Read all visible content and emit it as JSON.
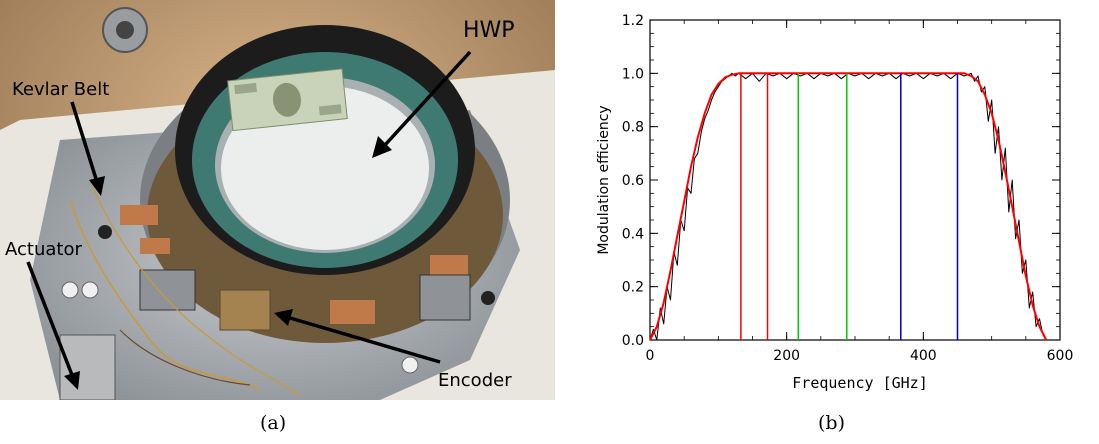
{
  "panel_a": {
    "caption": "(a)",
    "labels": {
      "hwp": "HWP",
      "kevlar_belt": "Kevlar Belt",
      "actuator": "Actuator",
      "encoder": "Encoder"
    }
  },
  "panel_b": {
    "caption": "(b)"
  },
  "chart_data": {
    "type": "line",
    "title": "",
    "xlabel": "Frequency [GHz]",
    "ylabel": "Modulation efficiency",
    "xlim": [
      0,
      600
    ],
    "ylim": [
      0.0,
      1.2
    ],
    "xticks": [
      0,
      200,
      400,
      600
    ],
    "xtick_labels": [
      "0",
      "200",
      "400",
      "600"
    ],
    "yticks": [
      0.0,
      0.2,
      0.4,
      0.6,
      0.8,
      1.0,
      1.2
    ],
    "ytick_labels": [
      "0.0",
      "0.2",
      "0.4",
      "0.6",
      "0.8",
      "1.0",
      "1.2"
    ],
    "grid": false,
    "series": [
      {
        "color": "#000000",
        "x": [
          0,
          5,
          10,
          15,
          20,
          25,
          30,
          35,
          40,
          45,
          50,
          55,
          60,
          65,
          70,
          75,
          80,
          85,
          90,
          95,
          100,
          105,
          110,
          115,
          120,
          125,
          130,
          140,
          150,
          160,
          170,
          180,
          190,
          200,
          210,
          220,
          230,
          240,
          250,
          260,
          270,
          280,
          290,
          300,
          310,
          320,
          330,
          340,
          350,
          360,
          370,
          380,
          390,
          400,
          410,
          420,
          430,
          440,
          450,
          460,
          470,
          475,
          480,
          485,
          490,
          495,
          500,
          505,
          510,
          515,
          520,
          525,
          530,
          535,
          540,
          545,
          550,
          555,
          560,
          565,
          570,
          575,
          580
        ],
        "values": [
          0.0,
          0.04,
          0.0,
          0.12,
          0.06,
          0.2,
          0.15,
          0.33,
          0.28,
          0.45,
          0.41,
          0.57,
          0.55,
          0.68,
          0.7,
          0.78,
          0.83,
          0.86,
          0.9,
          0.93,
          0.95,
          0.97,
          0.98,
          0.99,
          1.0,
          0.99,
          1.0,
          0.98,
          1.0,
          0.97,
          1.0,
          0.99,
          1.0,
          0.98,
          1.0,
          0.99,
          1.0,
          0.98,
          1.0,
          0.99,
          1.0,
          0.98,
          1.0,
          0.99,
          1.0,
          0.98,
          1.0,
          0.99,
          1.0,
          0.98,
          1.0,
          0.99,
          1.0,
          0.98,
          1.0,
          0.99,
          1.0,
          0.98,
          1.0,
          0.99,
          1.0,
          0.97,
          0.99,
          0.93,
          0.95,
          0.82,
          0.9,
          0.7,
          0.8,
          0.6,
          0.72,
          0.48,
          0.6,
          0.38,
          0.45,
          0.25,
          0.3,
          0.12,
          0.18,
          0.05,
          0.08,
          0.02,
          0.0
        ]
      },
      {
        "color": "#ff0000",
        "x": [
          0,
          10,
          20,
          30,
          40,
          50,
          60,
          70,
          80,
          90,
          100,
          110,
          120,
          130,
          140,
          200,
          300,
          400,
          450,
          460,
          470,
          480,
          490,
          500,
          510,
          520,
          530,
          540,
          550,
          560,
          570,
          580
        ],
        "values": [
          0.0,
          0.05,
          0.14,
          0.26,
          0.39,
          0.52,
          0.65,
          0.76,
          0.85,
          0.92,
          0.96,
          0.985,
          0.995,
          1.0,
          1.0,
          1.0,
          1.0,
          1.0,
          1.0,
          1.0,
          0.99,
          0.97,
          0.92,
          0.85,
          0.75,
          0.63,
          0.5,
          0.37,
          0.24,
          0.13,
          0.05,
          0.0
        ]
      }
    ],
    "vlines": [
      {
        "x": 133,
        "color": "#ff0000"
      },
      {
        "x": 172,
        "color": "#ff0000"
      },
      {
        "x": 217,
        "color": "#00cc00"
      },
      {
        "x": 288,
        "color": "#00cc00"
      },
      {
        "x": 367,
        "color": "#0000cc"
      },
      {
        "x": 450,
        "color": "#0000cc"
      }
    ]
  }
}
